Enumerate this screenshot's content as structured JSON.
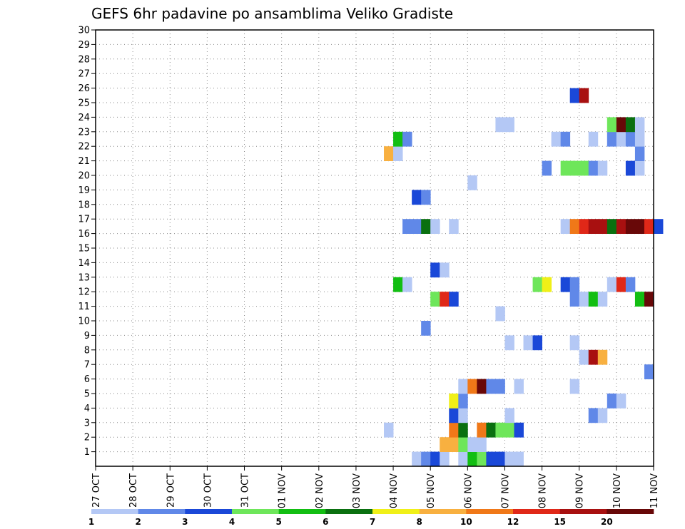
{
  "chart_data": {
    "type": "heatmap",
    "title": "GEFS 6hr padavine po ansamblima Veliko Gradiste",
    "x_axis": {
      "tick_labels": [
        "27 OCT",
        "28 OCT",
        "29 OCT",
        "30 OCT",
        "31 OCT",
        "01 NOV",
        "02 NOV",
        "03 NOV",
        "04 NOV",
        "05 NOV",
        "06 NOV",
        "07 NOV",
        "08 NOV",
        "09 NOV",
        "10 NOV",
        "11 NOV"
      ],
      "range_days": [
        0,
        15
      ],
      "step_hours": 6
    },
    "y_axis": {
      "tick_labels": [
        "1",
        "2",
        "3",
        "4",
        "5",
        "6",
        "7",
        "8",
        "9",
        "10",
        "11",
        "12",
        "13",
        "14",
        "15",
        "16",
        "17",
        "18",
        "19",
        "20",
        "21",
        "22",
        "23",
        "24",
        "25",
        "26",
        "27",
        "28",
        "29",
        "30"
      ],
      "range": [
        0,
        30
      ]
    },
    "grid": true,
    "legend": {
      "placement": "bottom",
      "labels": [
        "1",
        "2",
        "3",
        "4",
        "5",
        "6",
        "7",
        "8",
        "10",
        "12",
        "15",
        "20"
      ],
      "colors": [
        "#b4c8f5",
        "#6088e8",
        "#1a48d8",
        "#6ee65a",
        "#12be12",
        "#0a7010",
        "#f0f018",
        "#f8b040",
        "#f07818",
        "#e02818",
        "#a81010",
        "#680808"
      ]
    },
    "cells": [
      [
        8.5,
        0,
        1
      ],
      [
        8.75,
        0,
        2
      ],
      [
        9,
        0,
        3
      ],
      [
        9.25,
        0,
        1
      ],
      [
        9.75,
        0,
        1
      ],
      [
        10,
        0,
        5
      ],
      [
        10.25,
        0,
        4
      ],
      [
        10.5,
        0,
        3
      ],
      [
        10.75,
        0,
        3
      ],
      [
        11,
        0,
        1
      ],
      [
        11.25,
        0,
        1
      ],
      [
        9.25,
        1,
        8
      ],
      [
        9.5,
        1,
        8
      ],
      [
        9.75,
        1,
        4
      ],
      [
        10,
        1,
        1
      ],
      [
        10.25,
        1,
        1
      ],
      [
        7.75,
        2,
        1
      ],
      [
        9.5,
        2,
        9
      ],
      [
        9.75,
        2,
        6
      ],
      [
        10.25,
        2,
        9
      ],
      [
        10.5,
        2,
        6
      ],
      [
        10.75,
        2,
        4
      ],
      [
        11,
        2,
        4
      ],
      [
        11.25,
        2,
        3
      ],
      [
        9.5,
        3,
        3
      ],
      [
        9.75,
        3,
        1
      ],
      [
        11,
        3,
        1
      ],
      [
        13.25,
        3,
        2
      ],
      [
        13.5,
        3,
        1
      ],
      [
        9.5,
        4,
        7
      ],
      [
        9.75,
        4,
        2
      ],
      [
        13.75,
        4,
        2
      ],
      [
        14,
        4,
        1
      ],
      [
        9.75,
        5,
        1
      ],
      [
        10,
        5,
        9
      ],
      [
        10.25,
        5,
        12
      ],
      [
        10.5,
        5,
        2
      ],
      [
        10.75,
        5,
        2
      ],
      [
        11.25,
        5,
        1
      ],
      [
        12.75,
        5,
        1
      ],
      [
        14.75,
        6,
        2
      ],
      [
        13,
        7,
        1
      ],
      [
        13.25,
        7,
        11
      ],
      [
        13.5,
        7,
        8
      ],
      [
        11,
        8,
        1
      ],
      [
        11.5,
        8,
        1
      ],
      [
        11.75,
        8,
        3
      ],
      [
        12.75,
        8,
        1
      ],
      [
        8.75,
        9,
        2
      ],
      [
        10.75,
        10,
        1
      ],
      [
        9,
        11,
        4
      ],
      [
        9.25,
        11,
        10
      ],
      [
        9.5,
        11,
        3
      ],
      [
        12.75,
        11,
        2
      ],
      [
        13,
        11,
        1
      ],
      [
        13.25,
        11,
        5
      ],
      [
        13.5,
        11,
        1
      ],
      [
        14.5,
        11,
        5
      ],
      [
        14.75,
        11,
        12
      ],
      [
        8,
        12,
        5
      ],
      [
        8.25,
        12,
        1
      ],
      [
        11.75,
        12,
        4
      ],
      [
        12,
        12,
        7
      ],
      [
        12.5,
        12,
        3
      ],
      [
        12.75,
        12,
        2
      ],
      [
        13.75,
        12,
        1
      ],
      [
        14,
        12,
        10
      ],
      [
        14.25,
        12,
        2
      ],
      [
        9,
        13,
        3
      ],
      [
        9.25,
        13,
        1
      ],
      [
        8.25,
        16,
        2
      ],
      [
        8.5,
        16,
        2
      ],
      [
        8.75,
        16,
        6
      ],
      [
        9,
        16,
        1
      ],
      [
        9.5,
        16,
        1
      ],
      [
        12.5,
        16,
        1
      ],
      [
        12.75,
        16,
        9
      ],
      [
        13,
        16,
        10
      ],
      [
        13.25,
        16,
        11
      ],
      [
        13.5,
        16,
        11
      ],
      [
        13.75,
        16,
        6
      ],
      [
        14,
        16,
        11
      ],
      [
        14.25,
        16,
        12
      ],
      [
        14.5,
        16,
        12
      ],
      [
        14.75,
        16,
        10
      ],
      [
        15,
        16,
        3
      ],
      [
        8.5,
        18,
        3
      ],
      [
        8.75,
        18,
        2
      ],
      [
        10,
        19,
        1
      ],
      [
        12,
        20,
        2
      ],
      [
        12.5,
        20,
        4
      ],
      [
        12.75,
        20,
        4
      ],
      [
        13,
        20,
        4
      ],
      [
        13.25,
        20,
        2
      ],
      [
        13.5,
        20,
        1
      ],
      [
        14.25,
        20,
        3
      ],
      [
        14.5,
        20,
        1
      ],
      [
        7.75,
        21,
        8
      ],
      [
        8,
        21,
        1
      ],
      [
        14.5,
        21,
        2
      ],
      [
        8,
        22,
        5
      ],
      [
        8.25,
        22,
        2
      ],
      [
        12.25,
        22,
        1
      ],
      [
        12.5,
        22,
        2
      ],
      [
        13.25,
        22,
        1
      ],
      [
        13.75,
        22,
        2
      ],
      [
        14,
        22,
        1
      ],
      [
        14.25,
        22,
        2
      ],
      [
        14.5,
        22,
        1
      ],
      [
        10.75,
        23,
        1
      ],
      [
        11,
        23,
        1
      ],
      [
        13.75,
        23,
        4
      ],
      [
        14,
        23,
        12
      ],
      [
        14.25,
        23,
        6
      ],
      [
        14.5,
        23,
        1
      ],
      [
        12.75,
        25,
        3
      ],
      [
        13,
        25,
        11
      ]
    ]
  }
}
